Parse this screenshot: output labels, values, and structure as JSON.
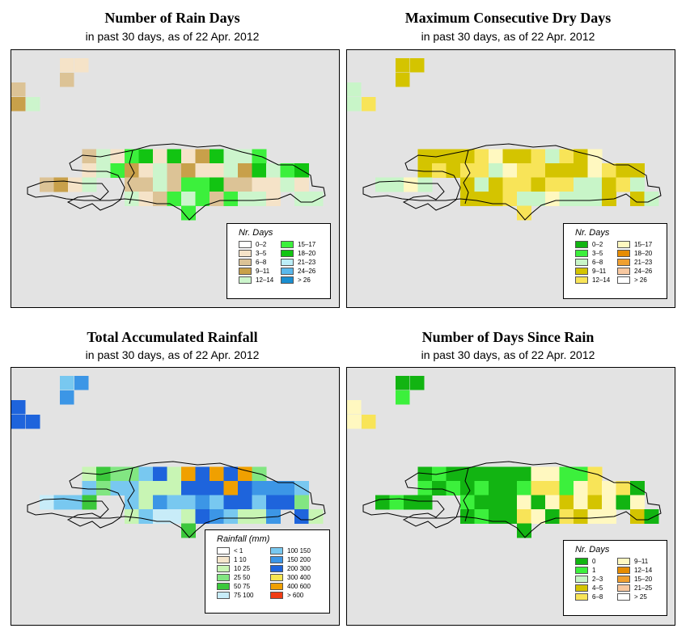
{
  "panels": [
    {
      "title": "Number of Rain Days",
      "subtitle": "in past 30 days, as of  22 Apr. 2012",
      "legend": {
        "title": "Nr. Days",
        "items": [
          {
            "label": "0–2",
            "color": "#ffffff"
          },
          {
            "label": "3–5",
            "color": "#f5e3c8"
          },
          {
            "label": "6–8",
            "color": "#dcc396"
          },
          {
            "label": "9–11",
            "color": "#c8a04a"
          },
          {
            "label": "12–14",
            "color": "#ccf5cc"
          },
          {
            "label": "15–17",
            "color": "#3cf03c"
          },
          {
            "label": "18–20",
            "color": "#12c412"
          },
          {
            "label": "21–23",
            "color": "#bceef8"
          },
          {
            "label": "24–26",
            "color": "#5ab8ec"
          },
          {
            "label": "> 26",
            "color": "#1a8ed0"
          }
        ]
      }
    },
    {
      "title": "Maximum Consecutive Dry Days",
      "subtitle": "in past 30 days, as of  22 Apr. 2012",
      "legend": {
        "title": "Nr. Days",
        "items": [
          {
            "label": "0–2",
            "color": "#12b412"
          },
          {
            "label": "3–5",
            "color": "#3cf03c"
          },
          {
            "label": "6–8",
            "color": "#c8f5c8"
          },
          {
            "label": "9–11",
            "color": "#d4c400"
          },
          {
            "label": "12–14",
            "color": "#f8e458"
          },
          {
            "label": "15–17",
            "color": "#fff8c0"
          },
          {
            "label": "18–20",
            "color": "#e68c00"
          },
          {
            "label": "21–23",
            "color": "#f0a030"
          },
          {
            "label": "24–26",
            "color": "#f8c8a0"
          },
          {
            "label": "> 26",
            "color": "#ffffff"
          }
        ]
      }
    },
    {
      "title": "Total Accumulated Rainfall",
      "subtitle": "in past 30 days, as of  22 Apr. 2012",
      "legend": {
        "title": "Rainfall (mm)",
        "items": [
          {
            "label": "< 1",
            "color": "#ffffff"
          },
          {
            "label": "1    10",
            "color": "#f5e6cc"
          },
          {
            "label": "10    25",
            "color": "#c8f5b4"
          },
          {
            "label": "25    50",
            "color": "#82e682"
          },
          {
            "label": "50    75",
            "color": "#3cc83c"
          },
          {
            "label": "75  100",
            "color": "#c8ecf8"
          },
          {
            "label": "100  150",
            "color": "#78c8f0"
          },
          {
            "label": "150  200",
            "color": "#3c96e6"
          },
          {
            "label": "200  300",
            "color": "#1e64dc"
          },
          {
            "label": "300  400",
            "color": "#f8e650"
          },
          {
            "label": "400  600",
            "color": "#f0a000"
          },
          {
            "label": "> 600",
            "color": "#f03c14"
          }
        ]
      }
    },
    {
      "title": "Number of Days Since Rain",
      "subtitle": "in past 30 days, as of  22 Apr. 2012",
      "legend": {
        "title": "Nr. Days",
        "items": [
          {
            "label": "0",
            "color": "#12b412"
          },
          {
            "label": "1",
            "color": "#3cf03c"
          },
          {
            "label": "2–3",
            "color": "#c8f5c8"
          },
          {
            "label": "4–5",
            "color": "#d4c400"
          },
          {
            "label": "6–8",
            "color": "#f8e458"
          },
          {
            "label": "9–11",
            "color": "#fff8c0"
          },
          {
            "label": "12–14",
            "color": "#e68c00"
          },
          {
            "label": "15–20",
            "color": "#f0a030"
          },
          {
            "label": "21–25",
            "color": "#f8c8a0"
          },
          {
            "label": "> 25",
            "color": "#ffffff"
          }
        ]
      }
    }
  ]
}
